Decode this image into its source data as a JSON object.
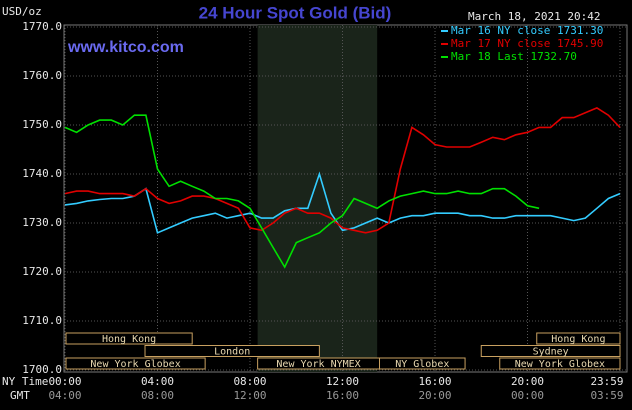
{
  "chart_data": {
    "type": "line",
    "title": "24 Hour Spot Gold (Bid)",
    "site": "www.kitco.com",
    "timestamp": "March 18, 2021 20:42",
    "y_label": "USD/oz",
    "x_row_labels": [
      "NY Time",
      "GMT"
    ],
    "x": [
      0,
      0.5,
      1,
      1.5,
      2,
      2.5,
      3,
      3.5,
      4,
      4.5,
      5,
      5.5,
      6,
      6.5,
      7,
      7.5,
      8,
      8.5,
      9,
      9.5,
      10,
      10.5,
      11,
      11.5,
      12,
      12.5,
      13,
      13.5,
      14,
      14.5,
      15,
      15.5,
      16,
      16.5,
      17,
      17.5,
      18,
      18.5,
      19,
      19.5,
      20,
      20.5,
      21,
      21.5,
      22,
      22.5,
      23,
      23.5,
      24
    ],
    "series": [
      {
        "name": "Mar 16 NY close 1731.30",
        "color": "#33ccff",
        "values": [
          1733.7,
          1734,
          1734.5,
          1734.8,
          1735,
          1735,
          1735.5,
          1737,
          1728,
          1729,
          1730,
          1731,
          1731.5,
          1732,
          1731,
          1731.5,
          1732,
          1731,
          1731,
          1732.5,
          1733,
          1733,
          1740,
          1732,
          1728.5,
          1729,
          1730,
          1731,
          1730,
          1731,
          1731.5,
          1731.5,
          1732,
          1732,
          1732,
          1731.5,
          1731.5,
          1731,
          1731,
          1731.5,
          1731.5,
          1731.5,
          1731.5,
          1731,
          1730.5,
          1731,
          1733,
          1735,
          1736
        ]
      },
      {
        "name": "Mar 17 NY close 1745.90",
        "color": "#e00000",
        "values": [
          1736,
          1736.5,
          1736.5,
          1736,
          1736,
          1736,
          1735.5,
          1737,
          1735,
          1734,
          1734.5,
          1735.5,
          1735.5,
          1735,
          1734,
          1733,
          1729,
          1728.5,
          1730,
          1732,
          1733,
          1732,
          1732,
          1731,
          1729,
          1728.5,
          1728,
          1728.5,
          1730,
          1741,
          1749.5,
          1748,
          1746,
          1745.5,
          1745.5,
          1745.5,
          1746.5,
          1747.5,
          1747,
          1748,
          1748.5,
          1749.5,
          1749.5,
          1751.5,
          1751.5,
          1752.5,
          1753.5,
          1752,
          1749.5
        ]
      },
      {
        "name": "Mar 18 Last 1732.70",
        "color": "#00e000",
        "values": [
          1749.5,
          1748.5,
          1750,
          1751,
          1751,
          1750,
          1752,
          1752,
          1741,
          1737.5,
          1738.5,
          1737.5,
          1736.5,
          1735,
          1735,
          1734.5,
          1733,
          1729,
          1725,
          1721,
          1726,
          1727,
          1728,
          1730,
          1731.5,
          1735,
          1734,
          1733,
          1734.5,
          1735.5,
          1736,
          1736.5,
          1736,
          1736,
          1736.5,
          1736,
          1736,
          1737,
          1737,
          1735.5,
          1733.5,
          1733,
          null,
          null,
          null,
          null,
          null,
          null,
          null
        ]
      }
    ],
    "xlim": [
      0,
      24
    ],
    "xticks": [
      {
        "value": 0,
        "label": "00:00"
      },
      {
        "value": 4,
        "label": "04:00"
      },
      {
        "value": 8,
        "label": "08:00"
      },
      {
        "value": 12,
        "label": "12:00"
      },
      {
        "value": 16,
        "label": "16:00"
      },
      {
        "value": 20,
        "label": "20:00"
      },
      {
        "value": 24,
        "label": "23:59"
      }
    ],
    "gmt_labels": [
      "04:00",
      "08:00",
      "12:00",
      "16:00",
      "20:00",
      "00:00",
      "03:59"
    ],
    "ylim": [
      1700,
      1770
    ],
    "yticks": [
      {
        "value": 1700,
        "label": "1700.0"
      },
      {
        "value": 1710,
        "label": "1710.0"
      },
      {
        "value": 1720,
        "label": "1720.0"
      },
      {
        "value": 1730,
        "label": "1730.0"
      },
      {
        "value": 1740,
        "label": "1740.0"
      },
      {
        "value": 1750,
        "label": "1750.0"
      },
      {
        "value": 1760,
        "label": "1760.0"
      },
      {
        "value": 1770,
        "label": "1770.0"
      }
    ],
    "grid": true,
    "highlight": {
      "start": 8.33,
      "end": 13.5
    },
    "sessions": [
      {
        "label": "Hong Kong",
        "start": 0,
        "end": 5.5,
        "row": 1
      },
      {
        "label": "Hong Kong",
        "start": 20.4,
        "end": 24,
        "row": 1
      },
      {
        "label": "London",
        "start": 3.46,
        "end": 11,
        "row": 2
      },
      {
        "label": "Sydney",
        "start": 18,
        "end": 24,
        "row": 2
      },
      {
        "label": "New York Globex",
        "start": 0,
        "end": 6.06,
        "row": 3
      },
      {
        "label": "New York NYMEX",
        "start": 8.33,
        "end": 13.6,
        "row": 3
      },
      {
        "label": "NY Globex",
        "start": 13.6,
        "end": 17.3,
        "row": 3
      },
      {
        "label": "New York Globex",
        "start": 18.8,
        "end": 24,
        "row": 3
      }
    ]
  }
}
